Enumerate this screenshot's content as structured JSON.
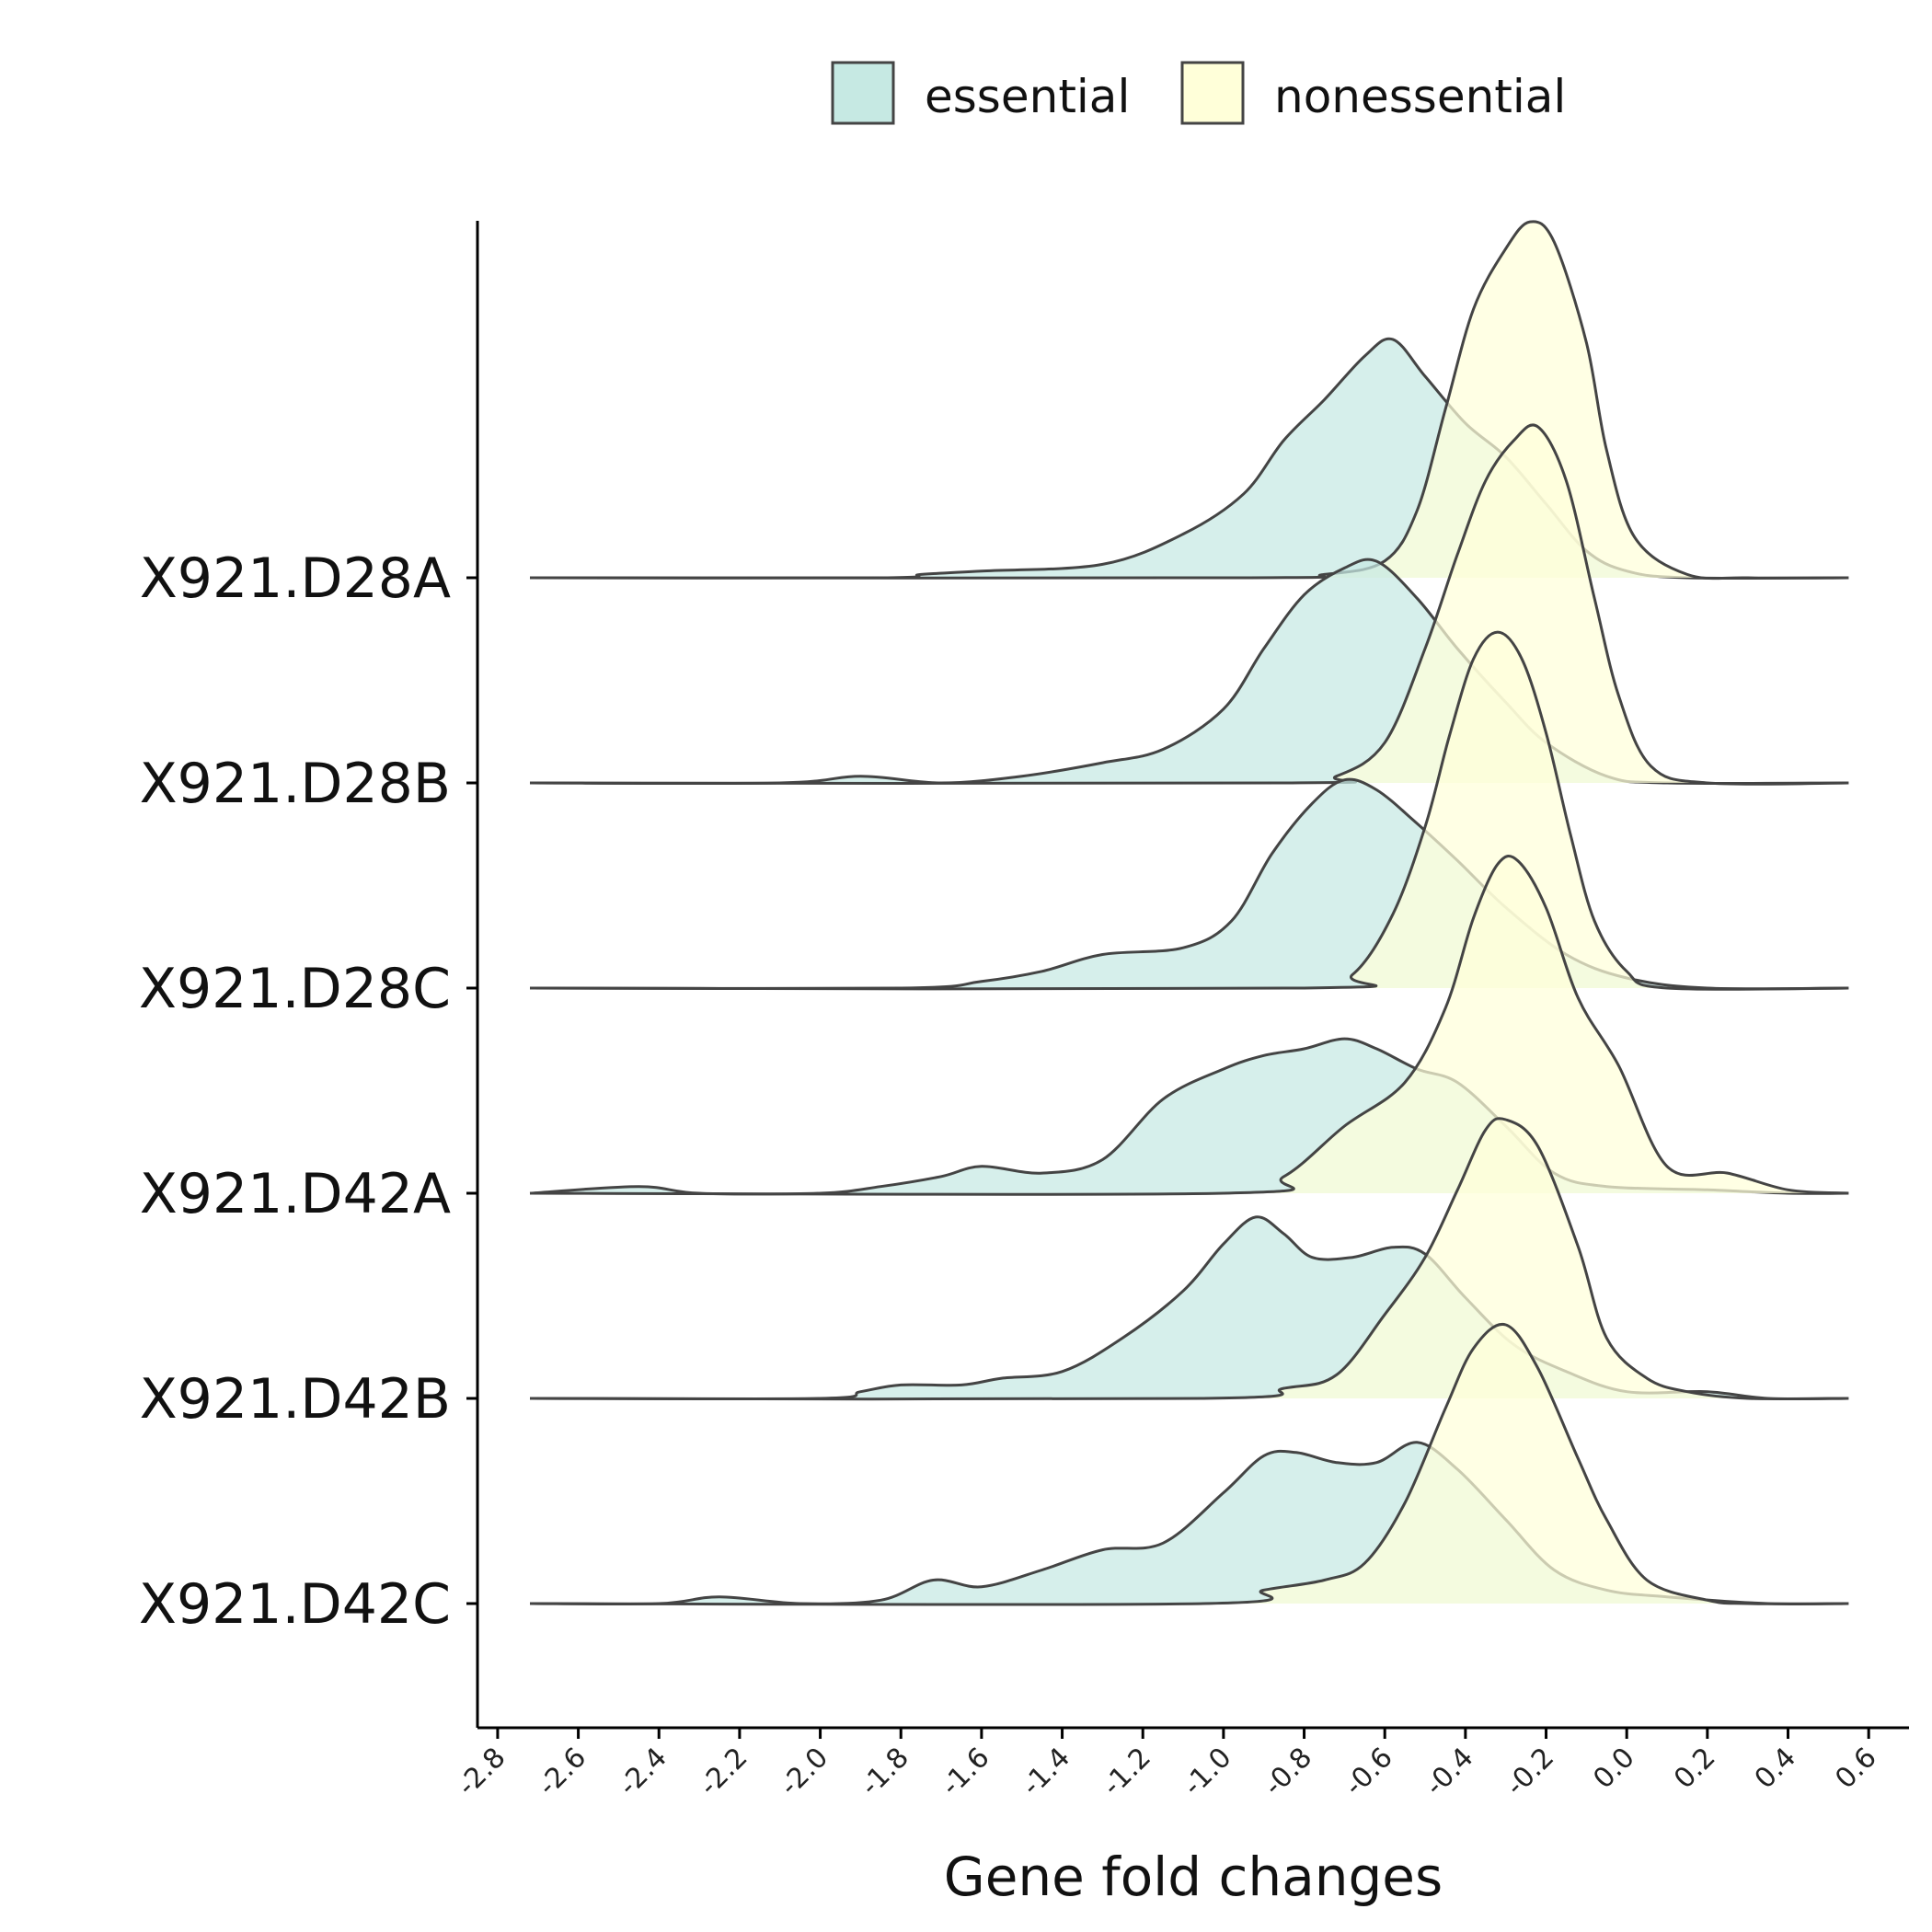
{
  "chart_data": {
    "type": "area",
    "subtype": "ridgeline",
    "title": "",
    "xlabel": "Gene fold changes",
    "ylabel": "",
    "xlim": [
      -2.85,
      0.7
    ],
    "xticks": [
      "-2.8",
      "-2.6",
      "-2.4",
      "-2.2",
      "-2.0",
      "-1.8",
      "-1.6",
      "-1.4",
      "-1.2",
      "-1.0",
      "-0.8",
      "-0.6",
      "-0.4",
      "-0.2",
      "0.0",
      "0.2",
      "0.4",
      "0.6"
    ],
    "legend_position": "top",
    "grid": false,
    "series": [
      {
        "name": "essential",
        "color": "#c6e9e3"
      },
      {
        "name": "nonessential",
        "color": "#ffffd9"
      }
    ],
    "rows": [
      {
        "label": "X921.D28A",
        "essential": [
          [
            -2.72,
            0
          ],
          [
            -1.85,
            0
          ],
          [
            -1.75,
            0.01
          ],
          [
            -1.6,
            0.02
          ],
          [
            -1.3,
            0.04
          ],
          [
            -1.1,
            0.13
          ],
          [
            -0.95,
            0.25
          ],
          [
            -0.85,
            0.41
          ],
          [
            -0.75,
            0.53
          ],
          [
            -0.65,
            0.66
          ],
          [
            -0.58,
            0.71
          ],
          [
            -0.5,
            0.6
          ],
          [
            -0.4,
            0.46
          ],
          [
            -0.3,
            0.36
          ],
          [
            -0.2,
            0.22
          ],
          [
            -0.1,
            0.08
          ],
          [
            0.0,
            0.02
          ],
          [
            0.15,
            0
          ],
          [
            0.55,
            0
          ]
        ],
        "nonessential": [
          [
            -2.72,
            0
          ],
          [
            -0.95,
            0
          ],
          [
            -0.75,
            0.01
          ],
          [
            -0.6,
            0.05
          ],
          [
            -0.52,
            0.2
          ],
          [
            -0.45,
            0.5
          ],
          [
            -0.38,
            0.8
          ],
          [
            -0.3,
            0.98
          ],
          [
            -0.24,
            1.06
          ],
          [
            -0.18,
            1.0
          ],
          [
            -0.1,
            0.7
          ],
          [
            -0.05,
            0.38
          ],
          [
            0.02,
            0.12
          ],
          [
            0.15,
            0.01
          ],
          [
            0.3,
            0
          ],
          [
            0.55,
            0
          ]
        ]
      },
      {
        "label": "X921.D28B",
        "essential": [
          [
            -2.72,
            0
          ],
          [
            -2.1,
            0
          ],
          [
            -1.9,
            0.02
          ],
          [
            -1.7,
            0
          ],
          [
            -1.5,
            0.02
          ],
          [
            -1.3,
            0.06
          ],
          [
            -1.15,
            0.1
          ],
          [
            -1.0,
            0.22
          ],
          [
            -0.9,
            0.4
          ],
          [
            -0.8,
            0.56
          ],
          [
            -0.7,
            0.64
          ],
          [
            -0.62,
            0.66
          ],
          [
            -0.52,
            0.55
          ],
          [
            -0.42,
            0.4
          ],
          [
            -0.3,
            0.24
          ],
          [
            -0.2,
            0.12
          ],
          [
            -0.05,
            0.02
          ],
          [
            0.1,
            0
          ],
          [
            0.55,
            0
          ]
        ],
        "nonessential": [
          [
            -2.72,
            0
          ],
          [
            -0.85,
            0
          ],
          [
            -0.72,
            0.02
          ],
          [
            -0.6,
            0.12
          ],
          [
            -0.5,
            0.4
          ],
          [
            -0.42,
            0.68
          ],
          [
            -0.35,
            0.9
          ],
          [
            -0.28,
            1.02
          ],
          [
            -0.22,
            1.06
          ],
          [
            -0.15,
            0.9
          ],
          [
            -0.08,
            0.55
          ],
          [
            -0.02,
            0.26
          ],
          [
            0.06,
            0.05
          ],
          [
            0.2,
            0
          ],
          [
            0.55,
            0
          ]
        ]
      },
      {
        "label": "X921.D28C",
        "essential": [
          [
            -2.72,
            0
          ],
          [
            -1.8,
            0
          ],
          [
            -1.6,
            0.02
          ],
          [
            -1.45,
            0.05
          ],
          [
            -1.3,
            0.1
          ],
          [
            -1.1,
            0.12
          ],
          [
            -0.98,
            0.2
          ],
          [
            -0.88,
            0.4
          ],
          [
            -0.78,
            0.55
          ],
          [
            -0.7,
            0.62
          ],
          [
            -0.62,
            0.59
          ],
          [
            -0.52,
            0.49
          ],
          [
            -0.42,
            0.38
          ],
          [
            -0.3,
            0.24
          ],
          [
            -0.15,
            0.1
          ],
          [
            0.0,
            0.03
          ],
          [
            0.2,
            0
          ],
          [
            0.55,
            0
          ]
        ],
        "nonessential": [
          [
            -2.72,
            0
          ],
          [
            -0.8,
            0
          ],
          [
            -0.68,
            0.04
          ],
          [
            -0.58,
            0.22
          ],
          [
            -0.5,
            0.48
          ],
          [
            -0.44,
            0.75
          ],
          [
            -0.38,
            0.98
          ],
          [
            -0.32,
            1.06
          ],
          [
            -0.26,
            0.98
          ],
          [
            -0.2,
            0.76
          ],
          [
            -0.14,
            0.46
          ],
          [
            -0.08,
            0.2
          ],
          [
            0.0,
            0.05
          ],
          [
            0.1,
            0
          ],
          [
            0.55,
            0
          ]
        ]
      },
      {
        "label": "X921.D42A",
        "essential": [
          [
            -2.72,
            0
          ],
          [
            -2.45,
            0.02
          ],
          [
            -2.3,
            0
          ],
          [
            -2.0,
            0
          ],
          [
            -1.85,
            0.02
          ],
          [
            -1.7,
            0.05
          ],
          [
            -1.6,
            0.08
          ],
          [
            -1.45,
            0.06
          ],
          [
            -1.3,
            0.1
          ],
          [
            -1.15,
            0.28
          ],
          [
            -1.0,
            0.37
          ],
          [
            -0.9,
            0.41
          ],
          [
            -0.8,
            0.43
          ],
          [
            -0.7,
            0.46
          ],
          [
            -0.62,
            0.43
          ],
          [
            -0.52,
            0.37
          ],
          [
            -0.42,
            0.33
          ],
          [
            -0.3,
            0.2
          ],
          [
            -0.18,
            0.06
          ],
          [
            -0.05,
            0.02
          ],
          [
            0.2,
            0.01
          ],
          [
            0.4,
            0
          ],
          [
            0.55,
            0
          ]
        ],
        "nonessential": [
          [
            -2.72,
            0
          ],
          [
            -1.0,
            0
          ],
          [
            -0.85,
            0.05
          ],
          [
            -0.7,
            0.2
          ],
          [
            -0.55,
            0.33
          ],
          [
            -0.45,
            0.55
          ],
          [
            -0.38,
            0.82
          ],
          [
            -0.32,
            0.98
          ],
          [
            -0.27,
            0.99
          ],
          [
            -0.2,
            0.85
          ],
          [
            -0.12,
            0.58
          ],
          [
            -0.02,
            0.38
          ],
          [
            0.1,
            0.08
          ],
          [
            0.25,
            0.06
          ],
          [
            0.4,
            0.01
          ],
          [
            0.55,
            0
          ]
        ]
      },
      {
        "label": "X921.D42B",
        "essential": [
          [
            -2.72,
            0
          ],
          [
            -2.0,
            0
          ],
          [
            -1.9,
            0.02
          ],
          [
            -1.8,
            0.04
          ],
          [
            -1.65,
            0.04
          ],
          [
            -1.55,
            0.06
          ],
          [
            -1.4,
            0.08
          ],
          [
            -1.25,
            0.18
          ],
          [
            -1.1,
            0.32
          ],
          [
            -1.0,
            0.46
          ],
          [
            -0.92,
            0.54
          ],
          [
            -0.85,
            0.49
          ],
          [
            -0.78,
            0.42
          ],
          [
            -0.68,
            0.42
          ],
          [
            -0.58,
            0.45
          ],
          [
            -0.5,
            0.43
          ],
          [
            -0.4,
            0.3
          ],
          [
            -0.28,
            0.16
          ],
          [
            -0.15,
            0.08
          ],
          [
            0.0,
            0.02
          ],
          [
            0.2,
            0.02
          ],
          [
            0.35,
            0
          ],
          [
            0.55,
            0
          ]
        ],
        "nonessential": [
          [
            -2.72,
            0
          ],
          [
            -1.05,
            0
          ],
          [
            -0.85,
            0.03
          ],
          [
            -0.72,
            0.07
          ],
          [
            -0.6,
            0.25
          ],
          [
            -0.5,
            0.42
          ],
          [
            -0.42,
            0.62
          ],
          [
            -0.35,
            0.8
          ],
          [
            -0.3,
            0.83
          ],
          [
            -0.22,
            0.75
          ],
          [
            -0.12,
            0.45
          ],
          [
            -0.05,
            0.18
          ],
          [
            0.05,
            0.06
          ],
          [
            0.15,
            0.02
          ],
          [
            0.3,
            0
          ],
          [
            0.55,
            0
          ]
        ]
      },
      {
        "label": "X921.D42C",
        "essential": [
          [
            -2.72,
            0
          ],
          [
            -2.4,
            0
          ],
          [
            -2.25,
            0.02
          ],
          [
            -2.05,
            0
          ],
          [
            -1.85,
            0.01
          ],
          [
            -1.72,
            0.07
          ],
          [
            -1.6,
            0.05
          ],
          [
            -1.45,
            0.1
          ],
          [
            -1.3,
            0.16
          ],
          [
            -1.15,
            0.18
          ],
          [
            -1.0,
            0.33
          ],
          [
            -0.9,
            0.44
          ],
          [
            -0.82,
            0.45
          ],
          [
            -0.72,
            0.42
          ],
          [
            -0.62,
            0.42
          ],
          [
            -0.52,
            0.48
          ],
          [
            -0.42,
            0.4
          ],
          [
            -0.3,
            0.25
          ],
          [
            -0.18,
            0.1
          ],
          [
            -0.05,
            0.04
          ],
          [
            0.1,
            0.02
          ],
          [
            0.35,
            0
          ],
          [
            0.55,
            0
          ]
        ],
        "nonessential": [
          [
            -2.72,
            0
          ],
          [
            -1.05,
            0
          ],
          [
            -0.9,
            0.04
          ],
          [
            -0.75,
            0.07
          ],
          [
            -0.65,
            0.12
          ],
          [
            -0.55,
            0.3
          ],
          [
            -0.45,
            0.58
          ],
          [
            -0.38,
            0.76
          ],
          [
            -0.3,
            0.83
          ],
          [
            -0.22,
            0.7
          ],
          [
            -0.12,
            0.43
          ],
          [
            -0.05,
            0.25
          ],
          [
            0.05,
            0.07
          ],
          [
            0.2,
            0.01
          ],
          [
            0.3,
            0
          ],
          [
            0.55,
            0
          ]
        ]
      }
    ]
  }
}
